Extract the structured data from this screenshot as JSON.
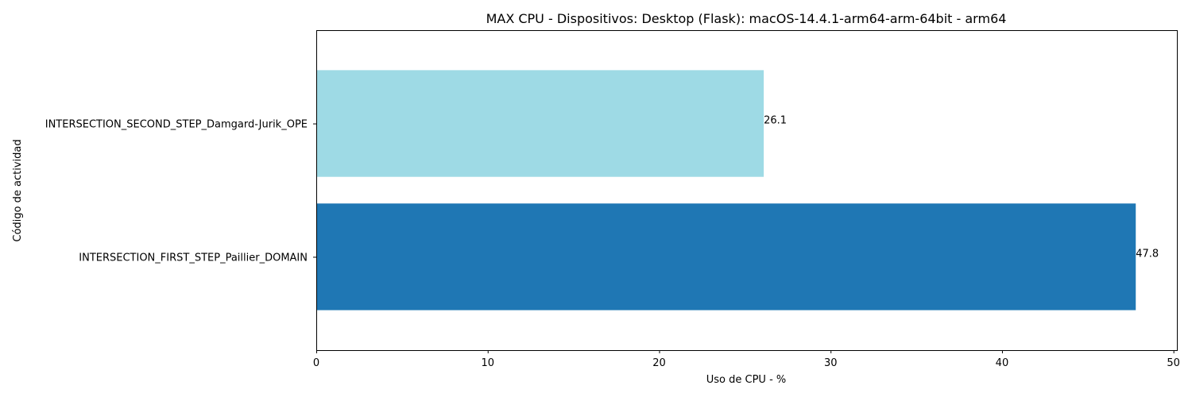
{
  "chart_data": {
    "type": "bar",
    "orientation": "horizontal",
    "title": "MAX CPU - Dispositivos: Desktop (Flask): macOS-14.4.1-arm64-arm-64bit - arm64",
    "xlabel": "Uso de CPU - %",
    "ylabel": "Código de actividad",
    "xlim": [
      0,
      50.2
    ],
    "xticks": [
      0,
      10,
      20,
      30,
      40,
      50
    ],
    "grid": false,
    "categories": [
      "INTERSECTION_FIRST_STEP_Paillier_DOMAIN",
      "INTERSECTION_SECOND_STEP_Damgard-Jurik_OPE"
    ],
    "values": [
      47.8,
      26.1
    ],
    "value_labels": [
      "47.8",
      "26.1"
    ],
    "colors": [
      "#1f77b4",
      "#9edae5"
    ]
  }
}
